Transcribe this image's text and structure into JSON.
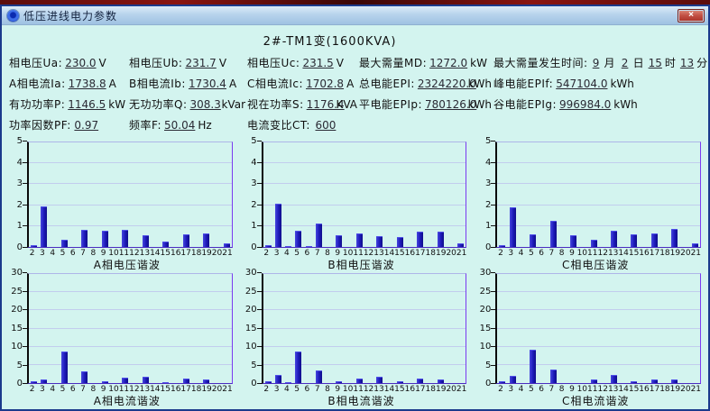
{
  "window": {
    "title": "低压进线电力参数",
    "close_glyph": "×"
  },
  "subtitle": "2#-TM1变(1600KVA)",
  "colors": {
    "bar": "#1c19b8",
    "background": "#d3f4ef",
    "titlebar": "#b7d3ec",
    "plot_border": "#7a3bf0",
    "close_button": "#c14e42"
  },
  "param_rows": [
    [
      {
        "label": "相电压Ua:",
        "value": "230.0",
        "unit": "V"
      },
      {
        "label": "相电压Ub:",
        "value": "231.7",
        "unit": "V"
      },
      {
        "label": "相电压Uc:",
        "value": "231.5",
        "unit": "V"
      },
      {
        "label": "最大需量MD:",
        "value": "1272.0",
        "unit": "kW"
      },
      {
        "label": "最大需量发生时间:",
        "parts": [
          {
            "v": "9",
            "u": "月"
          },
          {
            "v": "2",
            "u": "日"
          },
          {
            "v": "15",
            "u": "时"
          },
          {
            "v": "13",
            "u": "分"
          }
        ]
      }
    ],
    [
      {
        "label": "A相电流Ia:",
        "value": "1738.8",
        "unit": "A"
      },
      {
        "label": "B相电流Ib:",
        "value": "1730.4",
        "unit": "A"
      },
      {
        "label": "C相电流Ic:",
        "value": "1702.8",
        "unit": "A"
      },
      {
        "label": "总电能EPI:",
        "value": "2324220.0",
        "unit": "kWh"
      },
      {
        "label": "峰电能EPIf:",
        "value": "547104.0",
        "unit": "kWh"
      }
    ],
    [
      {
        "label": "有功功率P:",
        "value": "1146.5",
        "unit": "kW"
      },
      {
        "label": "无功功率Q:",
        "value": "308.3",
        "unit": "kVar"
      },
      {
        "label": "视在功率S:",
        "value": "1176.4",
        "unit": "KVA"
      },
      {
        "label": "平电能EPIp:",
        "value": "780126.0",
        "unit": "kWh"
      },
      {
        "label": "谷电能EPIg:",
        "value": "996984.0",
        "unit": "kWh"
      }
    ],
    [
      {
        "label": "功率因数PF:",
        "value": "0.97",
        "unit": ""
      },
      {
        "label": "频率F:",
        "value": "50.04",
        "unit": "Hz"
      },
      {
        "label": "电流变比CT:",
        "value": "600",
        "unit": ""
      }
    ]
  ],
  "chart_data": [
    {
      "type": "bar",
      "title": "A相电压谐波",
      "categories": [
        2,
        3,
        4,
        5,
        6,
        7,
        8,
        9,
        10,
        11,
        12,
        13,
        14,
        15,
        16,
        17,
        18,
        19,
        20,
        21
      ],
      "values": [
        0.1,
        1.9,
        0,
        0.35,
        0,
        0.8,
        0,
        0.75,
        0,
        0.8,
        0,
        0.55,
        0,
        0.25,
        0,
        0.6,
        0,
        0.65,
        0,
        0.15
      ],
      "ylim": [
        0,
        5
      ],
      "ytick": 1,
      "grid": true,
      "legend": "none"
    },
    {
      "type": "bar",
      "title": "B相电压谐波",
      "categories": [
        2,
        3,
        4,
        5,
        6,
        7,
        8,
        9,
        10,
        11,
        12,
        13,
        14,
        15,
        16,
        17,
        18,
        19,
        20,
        21
      ],
      "values": [
        0.08,
        2.05,
        0.05,
        0.75,
        0.05,
        1.1,
        0,
        0.55,
        0,
        0.65,
        0,
        0.5,
        0,
        0.45,
        0,
        0.7,
        0,
        0.7,
        0,
        0.15
      ],
      "ylim": [
        0,
        5
      ],
      "ytick": 1,
      "grid": true,
      "legend": "none"
    },
    {
      "type": "bar",
      "title": "C相电压谐波",
      "categories": [
        2,
        3,
        4,
        5,
        6,
        7,
        8,
        9,
        10,
        11,
        12,
        13,
        14,
        15,
        16,
        17,
        18,
        19,
        20,
        21
      ],
      "values": [
        0.08,
        1.85,
        0,
        0.6,
        0,
        1.25,
        0,
        0.55,
        0,
        0.35,
        0,
        0.75,
        0,
        0.6,
        0,
        0.65,
        0,
        0.85,
        0,
        0.18
      ],
      "ylim": [
        0,
        5
      ],
      "ytick": 1,
      "grid": true,
      "legend": "none"
    },
    {
      "type": "bar",
      "title": "A相电流谐波",
      "categories": [
        2,
        3,
        4,
        5,
        6,
        7,
        8,
        9,
        10,
        11,
        12,
        13,
        14,
        15,
        16,
        17,
        18,
        19,
        20,
        21
      ],
      "values": [
        0.4,
        1.0,
        0,
        8.5,
        0,
        3.2,
        0,
        0.5,
        0,
        1.5,
        0,
        1.8,
        0,
        0.3,
        0,
        1.2,
        0,
        0.9,
        0,
        0
      ],
      "ylim": [
        0,
        30
      ],
      "ytick": 5,
      "grid": true,
      "legend": "none"
    },
    {
      "type": "bar",
      "title": "B相电流谐波",
      "categories": [
        2,
        3,
        4,
        5,
        6,
        7,
        8,
        9,
        10,
        11,
        12,
        13,
        14,
        15,
        16,
        17,
        18,
        19,
        20,
        21
      ],
      "values": [
        0.4,
        2.2,
        0.3,
        8.6,
        0,
        3.4,
        0,
        0.4,
        0,
        1.3,
        0,
        1.7,
        0,
        0.4,
        0,
        1.2,
        0,
        1.0,
        0,
        0
      ],
      "ylim": [
        0,
        30
      ],
      "ytick": 5,
      "grid": true,
      "legend": "none"
    },
    {
      "type": "bar",
      "title": "C相电流谐波",
      "categories": [
        2,
        3,
        4,
        5,
        6,
        7,
        8,
        9,
        10,
        11,
        12,
        13,
        14,
        15,
        16,
        17,
        18,
        19,
        20,
        21
      ],
      "values": [
        0.4,
        2.0,
        0,
        9.0,
        0,
        3.7,
        0,
        0,
        0,
        0.9,
        0,
        2.1,
        0,
        0.4,
        0,
        1.0,
        0,
        1.0,
        0,
        0
      ],
      "ylim": [
        0,
        30
      ],
      "ytick": 5,
      "grid": true,
      "legend": "none"
    }
  ]
}
